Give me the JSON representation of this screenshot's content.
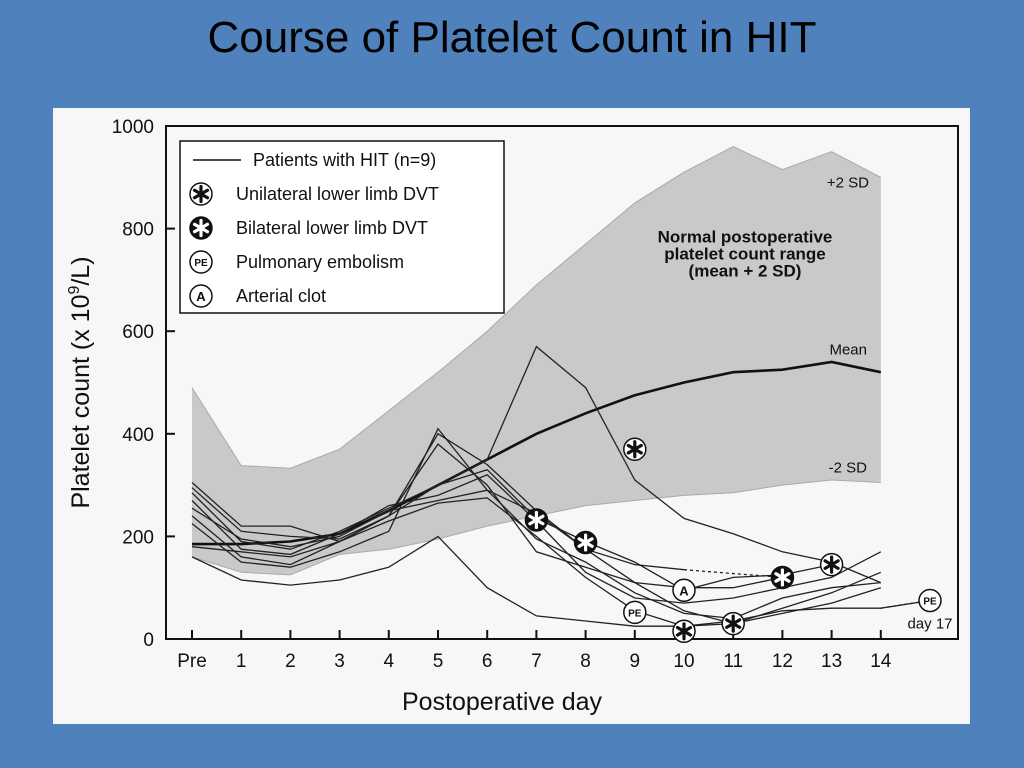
{
  "slide": {
    "title": "Course of Platelet Count in HIT"
  },
  "colors": {
    "background": "#4f81bd",
    "panel": "#f7f7f7",
    "band": "#c9c9c9",
    "ink": "#111111"
  },
  "chart_data": {
    "type": "line",
    "title": "",
    "xlabel": "Postoperative day",
    "ylabel_main": "Platelet count (x 10",
    "ylabel_sup": "9",
    "ylabel_end": "/L)",
    "categories": [
      "Pre",
      "1",
      "2",
      "3",
      "4",
      "5",
      "6",
      "7",
      "8",
      "9",
      "10",
      "11",
      "12",
      "13",
      "14"
    ],
    "x_tick_labels": [
      "Pre",
      "1",
      "2",
      "3",
      "4",
      "5",
      "6",
      "7",
      "8",
      "9",
      "10",
      "11",
      "12",
      "13",
      "14"
    ],
    "y_tick_labels": [
      "0",
      "200",
      "400",
      "600",
      "800",
      "1000"
    ],
    "ylim": [
      0,
      1000
    ],
    "normal_range": {
      "upper_2sd": [
        490,
        338,
        333,
        370,
        445,
        520,
        600,
        690,
        770,
        850,
        910,
        960,
        915,
        950,
        900
      ],
      "mean": [
        185,
        185,
        190,
        205,
        250,
        300,
        350,
        400,
        440,
        475,
        500,
        520,
        525,
        540,
        520
      ],
      "lower_2sd": [
        160,
        130,
        125,
        165,
        175,
        195,
        220,
        240,
        260,
        270,
        280,
        285,
        300,
        310,
        305
      ]
    },
    "series": [
      {
        "name": "Patients with HIT (n=9)",
        "x": [
          0,
          1,
          2,
          3,
          4,
          5,
          6,
          7,
          8,
          9,
          10
        ],
        "y": [
          305,
          220,
          220,
          190,
          240,
          400,
          340,
          250,
          175,
          145,
          135
        ]
      },
      {
        "x": [
          0,
          1,
          2,
          3,
          4,
          5,
          6,
          7,
          8,
          9,
          10,
          11,
          12
        ],
        "y": [
          295,
          210,
          200,
          195,
          240,
          380,
          300,
          170,
          140,
          110,
          100,
          100,
          120
        ]
      },
      {
        "x": [
          0,
          1,
          2,
          3,
          4,
          5,
          6,
          7,
          8,
          9,
          10,
          11,
          12,
          13
        ],
        "y": [
          285,
          190,
          175,
          210,
          255,
          300,
          330,
          235,
          190,
          150,
          95,
          120,
          125,
          145
        ]
      },
      {
        "x": [
          0,
          1,
          2,
          3,
          4,
          5,
          6,
          7,
          8,
          9,
          10,
          11,
          12,
          13,
          14
        ],
        "y": [
          270,
          175,
          165,
          205,
          260,
          280,
          320,
          230,
          130,
          80,
          70,
          80,
          100,
          120,
          170
        ]
      },
      {
        "x": [
          0,
          1,
          2,
          3,
          4,
          5,
          6,
          7,
          8,
          9,
          10,
          11,
          12,
          13,
          14
        ],
        "y": [
          255,
          195,
          180,
          200,
          250,
          270,
          290,
          245,
          175,
          110,
          55,
          30,
          60,
          90,
          130
        ]
      },
      {
        "x": [
          0,
          1,
          2,
          3,
          4,
          5,
          6,
          7,
          8,
          9,
          10,
          11,
          12,
          13,
          14
        ],
        "y": [
          240,
          160,
          145,
          190,
          230,
          265,
          275,
          200,
          120,
          55,
          25,
          30,
          50,
          70,
          100
        ]
      },
      {
        "x": [
          0,
          1,
          2,
          3,
          4,
          5,
          6,
          7,
          8,
          9,
          10,
          11,
          12,
          13,
          14
        ],
        "y": [
          225,
          150,
          140,
          170,
          210,
          410,
          290,
          195,
          150,
          90,
          50,
          40,
          80,
          100,
          110
        ]
      },
      {
        "x": [
          0,
          1,
          2,
          3,
          4,
          5,
          6,
          7,
          8,
          9,
          10,
          11,
          12,
          13,
          14
        ],
        "y": [
          180,
          170,
          160,
          190,
          240,
          300,
          350,
          570,
          490,
          310,
          235,
          205,
          170,
          150,
          110
        ]
      },
      {
        "x": [
          0,
          1,
          2,
          3,
          4,
          5,
          6,
          7,
          8,
          9,
          10,
          11,
          12,
          13,
          14,
          15
        ],
        "y": [
          160,
          115,
          105,
          115,
          140,
          200,
          100,
          45,
          35,
          25,
          25,
          35,
          55,
          60,
          60,
          75
        ]
      }
    ],
    "dotted_segments": [
      {
        "x": [
          10,
          12
        ],
        "y": [
          135,
          120
        ]
      },
      {
        "x": [
          14,
          15
        ],
        "y": [
          60,
          75
        ]
      }
    ],
    "events": [
      {
        "type": "unilateral",
        "x": 9,
        "y": 370
      },
      {
        "type": "bilateral",
        "x": 7,
        "y": 232
      },
      {
        "type": "bilateral",
        "x": 8,
        "y": 188
      },
      {
        "type": "unilateral",
        "x": 10,
        "y": 15
      },
      {
        "type": "unilateral",
        "x": 11,
        "y": 30
      },
      {
        "type": "bilateral",
        "x": 12,
        "y": 120
      },
      {
        "type": "unilateral",
        "x": 13,
        "y": 145
      },
      {
        "type": "pe",
        "x": 9,
        "y": 52
      },
      {
        "type": "pe",
        "x": 15,
        "y": 75
      },
      {
        "type": "arterial",
        "x": 10,
        "y": 95
      }
    ],
    "legend": {
      "placement": "top-left",
      "entries": [
        {
          "label": "Patients with HIT (n=9)",
          "symbol": "line"
        },
        {
          "label": "Unilateral lower limb DVT",
          "symbol": "unilateral"
        },
        {
          "label": "Bilateral lower limb DVT",
          "symbol": "bilateral"
        },
        {
          "label": "Pulmonary embolism",
          "symbol": "pe"
        },
        {
          "label": "Arterial clot",
          "symbol": "arterial"
        }
      ]
    },
    "symbol_text": {
      "pe": "PE",
      "arterial": "A"
    },
    "annotations": {
      "plus_2sd": "+2 SD",
      "minus_2sd": "-2 SD",
      "mean": "Mean",
      "range_line1": "Normal postoperative",
      "range_line2": "platelet count range",
      "range_line3": "(mean + 2 SD)",
      "day17": "day 17"
    },
    "grid": false
  }
}
